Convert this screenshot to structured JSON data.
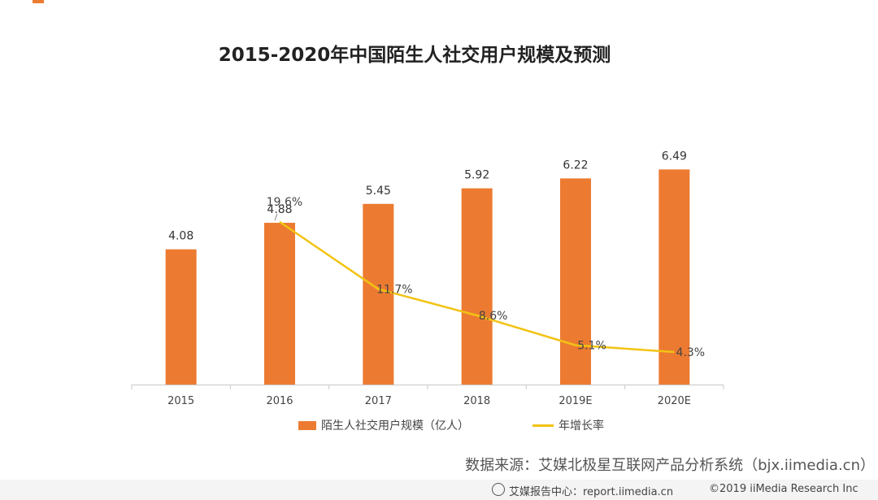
{
  "chart_data": {
    "type": "bar",
    "title": "2015-2020年中国陌生人社交用户规模及预测",
    "categories": [
      "2015",
      "2016",
      "2017",
      "2018",
      "2019E",
      "2020E"
    ],
    "series": [
      {
        "name": "陌生人社交用户规模（亿人）",
        "type": "bar",
        "color": "#ec7b31",
        "values": [
          4.08,
          4.88,
          5.45,
          5.92,
          6.22,
          6.49
        ],
        "labels": [
          "4.08",
          "4.88",
          "5.45",
          "5.92",
          "6.22",
          "6.49"
        ]
      },
      {
        "name": "年增长率",
        "type": "line",
        "color": "#f2c314",
        "values": [
          null,
          19.6,
          11.7,
          8.6,
          5.1,
          4.3
        ],
        "labels": [
          "",
          "19.6%",
          "11.7%",
          "8.6%",
          "5.1%",
          "4.3%"
        ]
      }
    ],
    "ylim_bar": [
      0,
      9
    ],
    "ylim_line": [
      0,
      28
    ],
    "xlabel": "",
    "ylabel": "",
    "legend_position": "bottom",
    "grid": false
  },
  "source": "数据来源：艾媒北极星互联网产品分析系统（bjx.iimedia.cn）",
  "footer": {
    "center": "艾媒报告中心：report.iimedia.cn",
    "copyright": "©2019 iiMedia Research Inc"
  }
}
